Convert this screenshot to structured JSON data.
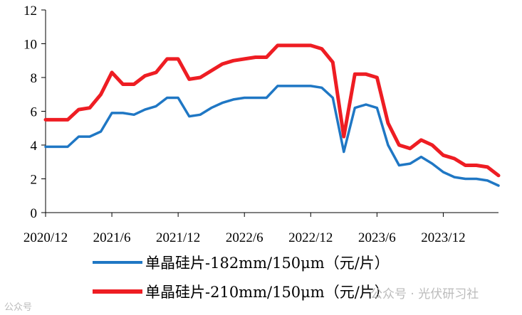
{
  "chart_data": {
    "type": "line",
    "title": "",
    "xlabel": "",
    "ylabel": "",
    "x_start": "2020/12",
    "x_end": "2024/5",
    "xticks": [
      "2020/12",
      "2021/6",
      "2021/12",
      "2022/6",
      "2022/12",
      "2023/6",
      "2023/12"
    ],
    "ylim": [
      0,
      12
    ],
    "yticks": [
      "0",
      "2",
      "4",
      "6",
      "8",
      "10",
      "12"
    ],
    "grid": false,
    "legend_position": "bottom",
    "series": [
      {
        "name": "单晶硅片-182mm/150μm（元/片）",
        "color": "#1f77c4",
        "points": [
          [
            "2020/12",
            3.9
          ],
          [
            "2021/1",
            3.9
          ],
          [
            "2021/2",
            3.9
          ],
          [
            "2021/3",
            4.5
          ],
          [
            "2021/4",
            4.5
          ],
          [
            "2021/5",
            4.8
          ],
          [
            "2021/6",
            5.9
          ],
          [
            "2021/7",
            5.9
          ],
          [
            "2021/8",
            5.8
          ],
          [
            "2021/9",
            6.1
          ],
          [
            "2021/10",
            6.3
          ],
          [
            "2021/11",
            6.8
          ],
          [
            "2021/12",
            6.8
          ],
          [
            "2022/1",
            5.7
          ],
          [
            "2022/2",
            5.8
          ],
          [
            "2022/3",
            6.2
          ],
          [
            "2022/4",
            6.5
          ],
          [
            "2022/5",
            6.7
          ],
          [
            "2022/6",
            6.8
          ],
          [
            "2022/7",
            6.8
          ],
          [
            "2022/8",
            6.8
          ],
          [
            "2022/9",
            7.5
          ],
          [
            "2022/10",
            7.5
          ],
          [
            "2022/11",
            7.5
          ],
          [
            "2022/12",
            7.5
          ],
          [
            "2023/1",
            7.4
          ],
          [
            "2023/2",
            6.8
          ],
          [
            "2023/3",
            3.6
          ],
          [
            "2023/4",
            6.2
          ],
          [
            "2023/5",
            6.4
          ],
          [
            "2023/6",
            6.2
          ],
          [
            "2023/7",
            4.0
          ],
          [
            "2023/8",
            2.8
          ],
          [
            "2023/9",
            2.9
          ],
          [
            "2023/10",
            3.3
          ],
          [
            "2023/11",
            2.9
          ],
          [
            "2023/12",
            2.4
          ],
          [
            "2024/1",
            2.1
          ],
          [
            "2024/2",
            2.0
          ],
          [
            "2024/3",
            2.0
          ],
          [
            "2024/4",
            1.9
          ],
          [
            "2024/5",
            1.6
          ]
        ]
      },
      {
        "name": "单晶硅片-210mm/150μm（元/片）",
        "color": "#ee1d23",
        "points": [
          [
            "2020/12",
            5.5
          ],
          [
            "2021/1",
            5.5
          ],
          [
            "2021/2",
            5.5
          ],
          [
            "2021/3",
            6.1
          ],
          [
            "2021/4",
            6.2
          ],
          [
            "2021/5",
            7.0
          ],
          [
            "2021/6",
            8.3
          ],
          [
            "2021/7",
            7.6
          ],
          [
            "2021/8",
            7.6
          ],
          [
            "2021/9",
            8.1
          ],
          [
            "2021/10",
            8.3
          ],
          [
            "2021/11",
            9.1
          ],
          [
            "2021/12",
            9.1
          ],
          [
            "2022/1",
            7.9
          ],
          [
            "2022/2",
            8.0
          ],
          [
            "2022/3",
            8.4
          ],
          [
            "2022/4",
            8.8
          ],
          [
            "2022/5",
            9.0
          ],
          [
            "2022/6",
            9.1
          ],
          [
            "2022/7",
            9.2
          ],
          [
            "2022/8",
            9.2
          ],
          [
            "2022/9",
            9.9
          ],
          [
            "2022/10",
            9.9
          ],
          [
            "2022/11",
            9.9
          ],
          [
            "2022/12",
            9.9
          ],
          [
            "2023/1",
            9.7
          ],
          [
            "2023/2",
            8.9
          ],
          [
            "2023/3",
            4.5
          ],
          [
            "2023/4",
            8.2
          ],
          [
            "2023/5",
            8.2
          ],
          [
            "2023/6",
            8.0
          ],
          [
            "2023/7",
            5.3
          ],
          [
            "2023/8",
            4.0
          ],
          [
            "2023/9",
            3.8
          ],
          [
            "2023/10",
            4.3
          ],
          [
            "2023/11",
            4.0
          ],
          [
            "2023/12",
            3.4
          ],
          [
            "2024/1",
            3.2
          ],
          [
            "2024/2",
            2.8
          ],
          [
            "2024/3",
            2.8
          ],
          [
            "2024/4",
            2.7
          ],
          [
            "2024/5",
            2.2
          ]
        ]
      }
    ]
  },
  "watermarks": {
    "left": "公众号",
    "right": "公众号 · 光伏研习社"
  }
}
